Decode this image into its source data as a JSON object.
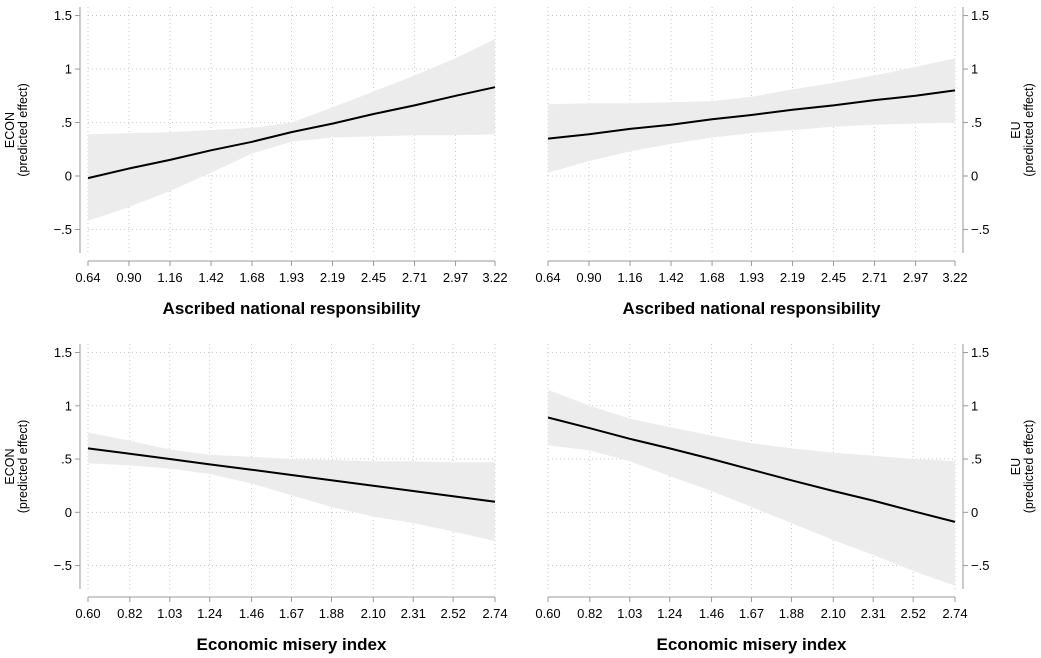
{
  "chart_data": [
    {
      "type": "line",
      "panel": "top-left",
      "xlabel": "Ascribed national responsibility",
      "ylabel": [
        "ECON",
        "(predicted effect)"
      ],
      "y_axis_side": "left",
      "xticks": [
        "0.64",
        "0.90",
        "1.16",
        "1.42",
        "1.68",
        "1.93",
        "2.19",
        "2.45",
        "2.71",
        "2.97",
        "3.22"
      ],
      "yticks": [
        "1.5",
        "1",
        ".5",
        "0",
        "−.5"
      ],
      "ytick_values": [
        1.5,
        1,
        0.5,
        0,
        -0.5
      ],
      "xlim": [
        0.64,
        3.22
      ],
      "ylim": [
        -0.72,
        1.58
      ],
      "grid": true,
      "series": [
        {
          "x": [
            0.64,
            0.9,
            1.16,
            1.42,
            1.68,
            1.93,
            2.19,
            2.45,
            2.71,
            2.97,
            3.22
          ],
          "y": [
            -0.02,
            0.07,
            0.15,
            0.24,
            0.32,
            0.41,
            0.49,
            0.58,
            0.66,
            0.75,
            0.83
          ],
          "lower": [
            -0.42,
            -0.29,
            -0.14,
            0.03,
            0.21,
            0.32,
            0.36,
            0.37,
            0.38,
            0.38,
            0.39
          ],
          "upper": [
            0.39,
            0.4,
            0.41,
            0.43,
            0.45,
            0.5,
            0.64,
            0.79,
            0.94,
            1.1,
            1.28
          ]
        }
      ]
    },
    {
      "type": "line",
      "panel": "top-right",
      "xlabel": "Ascribed national responsibility",
      "ylabel": [
        "EU",
        "(predicted effect)"
      ],
      "y_axis_side": "right",
      "xticks": [
        "0.64",
        "0.90",
        "1.16",
        "1.42",
        "1.68",
        "1.93",
        "2.19",
        "2.45",
        "2.71",
        "2.97",
        "3.22"
      ],
      "yticks": [
        "1.5",
        "1",
        ".5",
        "0",
        "−.5"
      ],
      "ytick_values": [
        1.5,
        1,
        0.5,
        0,
        -0.5
      ],
      "xlim": [
        0.64,
        3.22
      ],
      "ylim": [
        -0.72,
        1.58
      ],
      "grid": true,
      "series": [
        {
          "x": [
            0.64,
            0.9,
            1.16,
            1.42,
            1.68,
            1.93,
            2.19,
            2.45,
            2.71,
            2.97,
            3.22
          ],
          "y": [
            0.35,
            0.39,
            0.44,
            0.48,
            0.53,
            0.57,
            0.62,
            0.66,
            0.71,
            0.75,
            0.8
          ],
          "lower": [
            0.03,
            0.14,
            0.23,
            0.3,
            0.36,
            0.4,
            0.43,
            0.46,
            0.48,
            0.49,
            0.5
          ],
          "upper": [
            0.67,
            0.68,
            0.68,
            0.69,
            0.7,
            0.74,
            0.81,
            0.87,
            0.94,
            1.02,
            1.1
          ]
        }
      ]
    },
    {
      "type": "line",
      "panel": "bottom-left",
      "xlabel": "Economic misery index",
      "ylabel": [
        "ECON",
        "(predicted effect)"
      ],
      "y_axis_side": "left",
      "xticks": [
        "0.60",
        "0.82",
        "1.03",
        "1.24",
        "1.46",
        "1.67",
        "1.88",
        "2.10",
        "2.31",
        "2.52",
        "2.74"
      ],
      "yticks": [
        "1.5",
        "1",
        ".5",
        "0",
        "−.5"
      ],
      "ytick_values": [
        1.5,
        1,
        0.5,
        0,
        -0.5
      ],
      "xlim": [
        0.6,
        2.74
      ],
      "ylim": [
        -0.72,
        1.58
      ],
      "grid": true,
      "series": [
        {
          "x": [
            0.6,
            0.82,
            1.03,
            1.24,
            1.46,
            1.67,
            1.88,
            2.1,
            2.31,
            2.52,
            2.74
          ],
          "y": [
            0.6,
            0.55,
            0.5,
            0.45,
            0.4,
            0.35,
            0.3,
            0.25,
            0.2,
            0.15,
            0.1
          ],
          "lower": [
            0.46,
            0.44,
            0.41,
            0.36,
            0.27,
            0.16,
            0.05,
            -0.04,
            -0.1,
            -0.18,
            -0.27
          ],
          "upper": [
            0.75,
            0.67,
            0.59,
            0.54,
            0.52,
            0.5,
            0.49,
            0.48,
            0.48,
            0.47,
            0.47
          ]
        }
      ]
    },
    {
      "type": "line",
      "panel": "bottom-right",
      "xlabel": "Economic misery index",
      "ylabel": [
        "EU",
        "(predicted effect)"
      ],
      "y_axis_side": "right",
      "xticks": [
        "0.60",
        "0.82",
        "1.03",
        "1.24",
        "1.46",
        "1.67",
        "1.88",
        "2.10",
        "2.31",
        "2.52",
        "2.74"
      ],
      "yticks": [
        "1.5",
        "1",
        ".5",
        "0",
        "−.5"
      ],
      "ytick_values": [
        1.5,
        1,
        0.5,
        0,
        -0.5
      ],
      "xlim": [
        0.6,
        2.74
      ],
      "ylim": [
        -0.72,
        1.58
      ],
      "grid": true,
      "series": [
        {
          "x": [
            0.6,
            0.82,
            1.03,
            1.24,
            1.46,
            1.67,
            1.88,
            2.1,
            2.31,
            2.52,
            2.74
          ],
          "y": [
            0.89,
            0.79,
            0.69,
            0.6,
            0.5,
            0.4,
            0.3,
            0.2,
            0.11,
            0.01,
            -0.09
          ],
          "lower": [
            0.63,
            0.58,
            0.48,
            0.34,
            0.2,
            0.05,
            -0.1,
            -0.26,
            -0.4,
            -0.55,
            -0.69
          ],
          "upper": [
            1.15,
            1.0,
            0.88,
            0.8,
            0.72,
            0.65,
            0.6,
            0.56,
            0.53,
            0.5,
            0.48
          ]
        }
      ]
    }
  ]
}
